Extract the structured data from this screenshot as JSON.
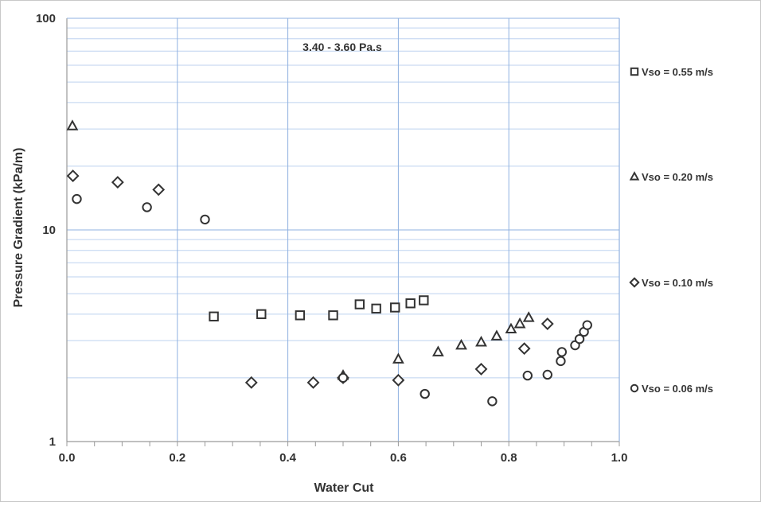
{
  "chart_data": {
    "type": "scatter",
    "annotation": "3.40 - 3.60 Pa.s",
    "xlabel": "Water Cut",
    "ylabel": "Pressure Gradient (kPa/m)",
    "xlim": [
      0,
      1.0
    ],
    "ylim": [
      1,
      100
    ],
    "y_scale": "log",
    "grid": true,
    "legend_position": "right",
    "x_ticks": [
      "0.0",
      "0.2",
      "0.4",
      "0.6",
      "0.8",
      "1.0"
    ],
    "y_ticks": [
      "1",
      "10",
      "100"
    ],
    "series": [
      {
        "name": "Vso = 0.55 m/s",
        "marker": "square",
        "points": [
          [
            0.266,
            3.9
          ],
          [
            0.352,
            4.0
          ],
          [
            0.422,
            3.95
          ],
          [
            0.482,
            3.95
          ],
          [
            0.53,
            4.45
          ],
          [
            0.56,
            4.25
          ],
          [
            0.594,
            4.3
          ],
          [
            0.622,
            4.5
          ],
          [
            0.646,
            4.65
          ]
        ]
      },
      {
        "name": "Vso = 0.20 m/s",
        "marker": "triangle",
        "points": [
          [
            0.01,
            31
          ],
          [
            0.5,
            2.05
          ],
          [
            0.6,
            2.45
          ],
          [
            0.672,
            2.65
          ],
          [
            0.714,
            2.85
          ],
          [
            0.75,
            2.95
          ],
          [
            0.778,
            3.15
          ],
          [
            0.804,
            3.4
          ],
          [
            0.82,
            3.6
          ],
          [
            0.836,
            3.85
          ]
        ]
      },
      {
        "name": "Vso = 0.10 m/s",
        "marker": "diamond",
        "points": [
          [
            0.011,
            18
          ],
          [
            0.092,
            16.8
          ],
          [
            0.166,
            15.5
          ],
          [
            0.334,
            1.9
          ],
          [
            0.446,
            1.9
          ],
          [
            0.5,
            2.0
          ],
          [
            0.6,
            1.95
          ],
          [
            0.75,
            2.2
          ],
          [
            0.828,
            2.75
          ],
          [
            0.87,
            3.6
          ]
        ]
      },
      {
        "name": "Vso = 0.06 m/s",
        "marker": "circle",
        "points": [
          [
            0.018,
            14
          ],
          [
            0.145,
            12.8
          ],
          [
            0.25,
            11.2
          ],
          [
            0.5,
            2.0
          ],
          [
            0.648,
            1.68
          ],
          [
            0.77,
            1.55
          ],
          [
            0.834,
            2.05
          ],
          [
            0.87,
            2.07
          ],
          [
            0.894,
            2.4
          ],
          [
            0.896,
            2.65
          ],
          [
            0.92,
            2.85
          ],
          [
            0.928,
            3.05
          ],
          [
            0.936,
            3.3
          ],
          [
            0.942,
            3.55
          ]
        ]
      }
    ]
  }
}
